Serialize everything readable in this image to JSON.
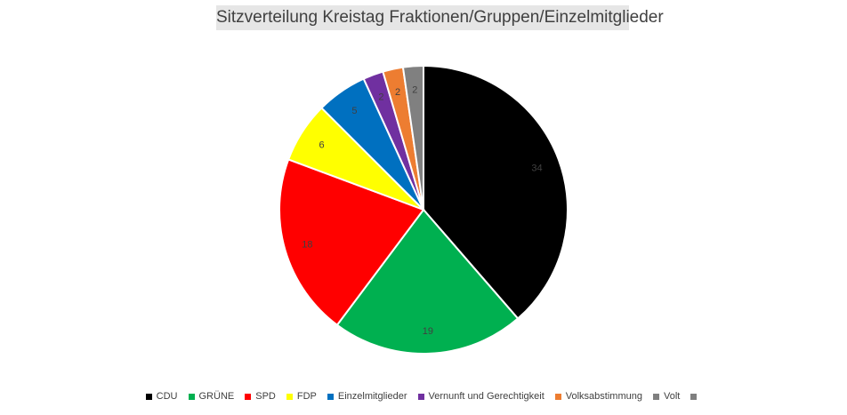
{
  "chart_data": {
    "type": "pie",
    "title": "Sitzverteilung Kreistag Fraktionen/Gruppen/Einzelmitglieder",
    "slices": [
      {
        "label": "CDU",
        "value": 34,
        "color": "#000000"
      },
      {
        "label": "GRÜNE",
        "value": 19,
        "color": "#00b050"
      },
      {
        "label": "SPD",
        "value": 18,
        "color": "#ff0000"
      },
      {
        "label": "FDP",
        "value": 6,
        "color": "#ffff00"
      },
      {
        "label": "Einzelmitglieder",
        "value": 5,
        "color": "#0070c0"
      },
      {
        "label": "Vernunft und Gerechtigkeit",
        "value": 2,
        "color": "#7030a0"
      },
      {
        "label": "Volksabstimmung",
        "value": 2,
        "color": "#ed7d31"
      },
      {
        "label": "Volt",
        "value": 2,
        "color": "#808080"
      }
    ],
    "legend": {
      "position": "bottom",
      "trailing_swatch_color": "#7f7f7f"
    },
    "data_labels": true,
    "start_angle": "top, clockwise"
  }
}
